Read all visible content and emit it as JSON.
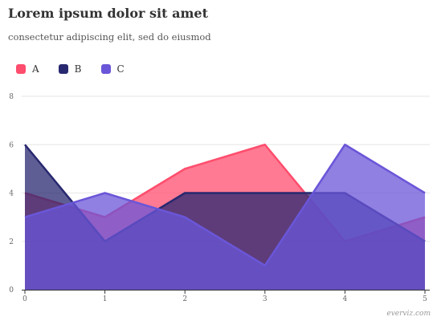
{
  "title": "Lorem ipsum dolor sit amet",
  "subtitle": "consectetur adipiscing elit, sed do eiusmod",
  "credit": "everviz.com",
  "chart_data": {
    "type": "area",
    "x": [
      0,
      1,
      2,
      3,
      4,
      5
    ],
    "xlim": [
      0,
      5
    ],
    "ylim": [
      0,
      8
    ],
    "xticks": [
      "0",
      "1",
      "2",
      "3",
      "4",
      "5"
    ],
    "yticks": [
      "0",
      "2",
      "4",
      "6",
      "8"
    ],
    "ytick_values": [
      0,
      2,
      4,
      6,
      8
    ],
    "grid": true,
    "legend_position": "top-left",
    "series": [
      {
        "name": "A",
        "values": [
          4,
          3,
          5,
          6,
          2,
          3
        ],
        "color": "#ff4d6d"
      },
      {
        "name": "B",
        "values": [
          6,
          2,
          4,
          4,
          4,
          2
        ],
        "color": "#282870"
      },
      {
        "name": "C",
        "values": [
          3,
          4,
          3,
          1,
          6,
          4
        ],
        "color": "#6a56d8"
      }
    ]
  }
}
